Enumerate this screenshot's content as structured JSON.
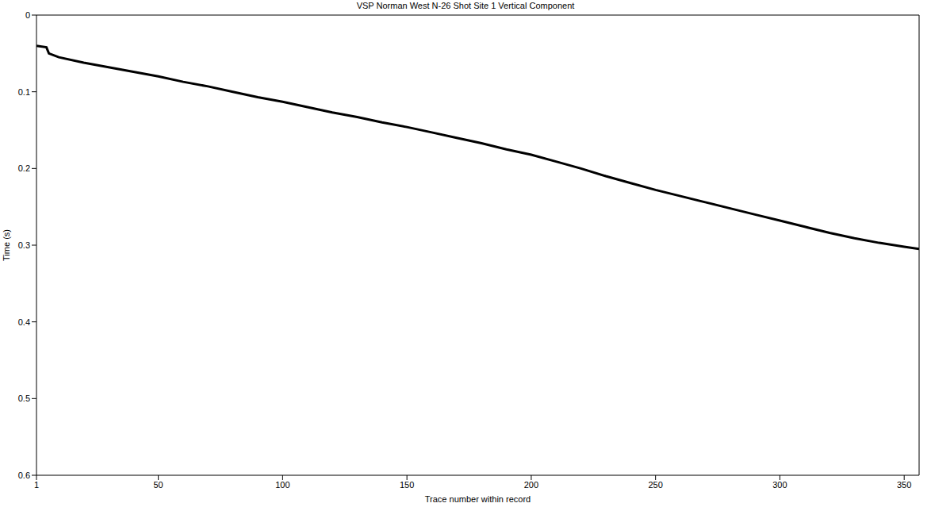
{
  "chart_data": {
    "type": "line",
    "title": "VSP Norman West N-26 Shot Site 1 Vertical Component",
    "x_label": "Trace number within record",
    "y_label": "Time (s)",
    "x": [
      1,
      5,
      6,
      10,
      20,
      30,
      40,
      50,
      60,
      70,
      80,
      90,
      100,
      110,
      120,
      130,
      140,
      150,
      160,
      170,
      180,
      190,
      200,
      210,
      220,
      230,
      240,
      250,
      260,
      270,
      280,
      290,
      300,
      310,
      320,
      330,
      340,
      350,
      356
    ],
    "values": [
      0.04,
      0.042,
      0.05,
      0.055,
      0.062,
      0.068,
      0.074,
      0.08,
      0.087,
      0.093,
      0.1,
      0.107,
      0.113,
      0.12,
      0.127,
      0.133,
      0.14,
      0.146,
      0.153,
      0.16,
      0.167,
      0.175,
      0.182,
      0.191,
      0.2,
      0.21,
      0.219,
      0.228,
      0.236,
      0.244,
      0.252,
      0.26,
      0.268,
      0.276,
      0.284,
      0.291,
      0.297,
      0.302,
      0.305
    ],
    "color": "#000000",
    "xlim": [
      1,
      356
    ],
    "xticks": [
      1,
      50,
      100,
      150,
      200,
      250,
      300,
      350
    ],
    "ylim": [
      0,
      0.6
    ],
    "yticks": [
      0,
      0.1,
      0.2,
      0.3,
      0.4,
      0.5,
      0.6
    ],
    "grid": false
  }
}
